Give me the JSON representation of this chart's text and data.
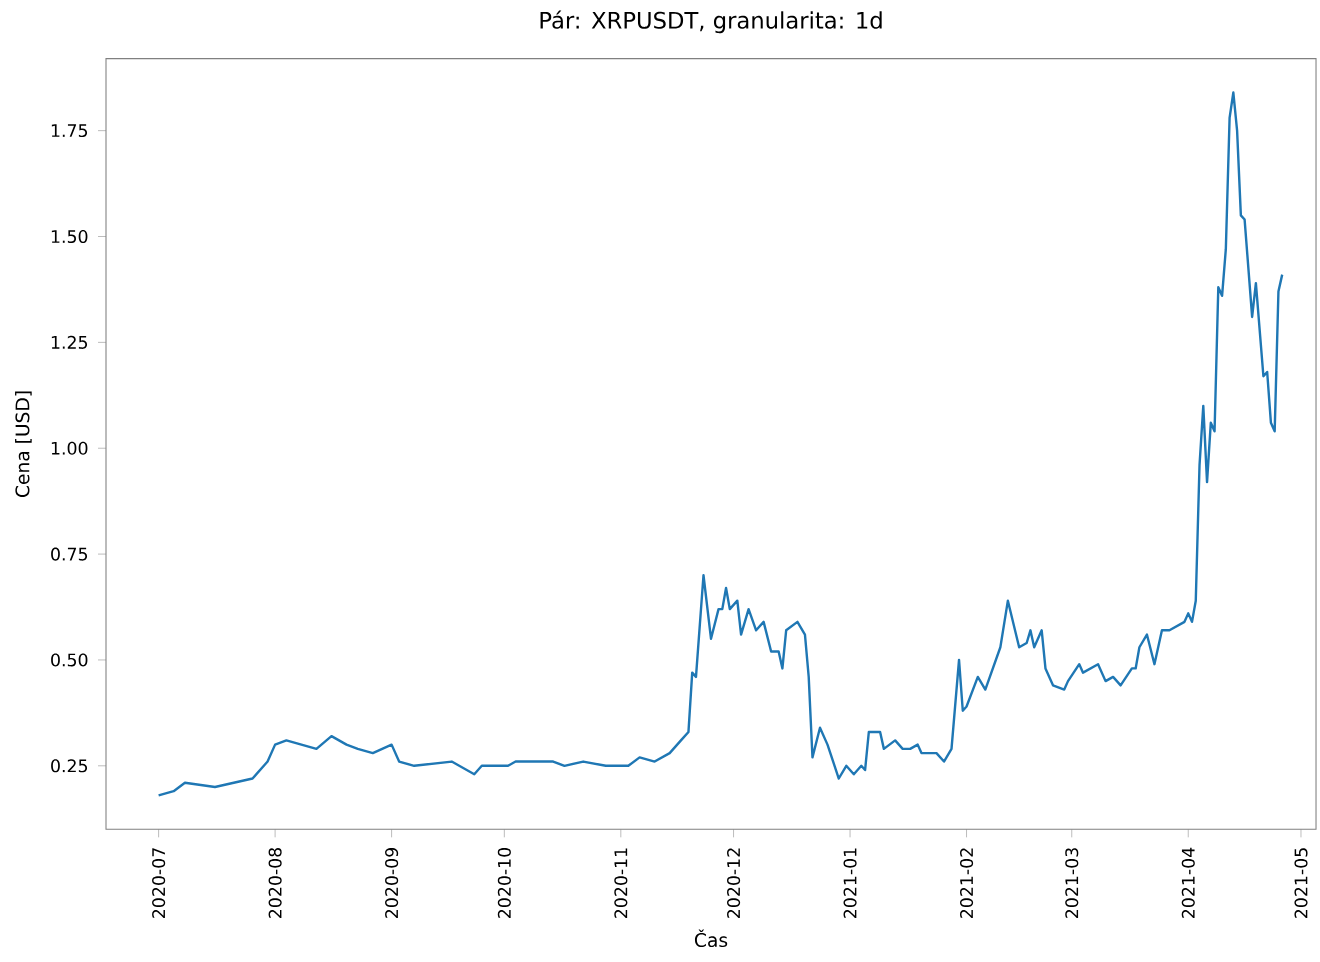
{
  "chart_data": {
    "type": "line",
    "title": "Pár: XRPUSDT, granularita: 1d",
    "xlabel": "Čas",
    "ylabel": "Cena [USD]",
    "xlim": [
      "2020-06-17",
      "2021-05-05"
    ],
    "ylim": [
      0.1,
      1.92
    ],
    "xticks": [
      "2020-07",
      "2020-08",
      "2020-09",
      "2020-10",
      "2020-11",
      "2020-12",
      "2021-01",
      "2021-02",
      "2021-03",
      "2021-04",
      "2021-05"
    ],
    "yticks": [
      {
        "value": 0.25,
        "label": "0.25"
      },
      {
        "value": 0.5,
        "label": "0.50"
      },
      {
        "value": 0.75,
        "label": "0.75"
      },
      {
        "value": 1.0,
        "label": "1.00"
      },
      {
        "value": 1.25,
        "label": "1.25"
      },
      {
        "value": 1.5,
        "label": "1.50"
      },
      {
        "value": 1.75,
        "label": "1.75"
      }
    ],
    "grid": false,
    "x": [
      "2020-07-01",
      "2020-07-05",
      "2020-07-08",
      "2020-07-16",
      "2020-07-21",
      "2020-07-26",
      "2020-07-30",
      "2020-08-01",
      "2020-08-04",
      "2020-08-12",
      "2020-08-16",
      "2020-08-20",
      "2020-08-23",
      "2020-08-27",
      "2020-09-01",
      "2020-09-03",
      "2020-09-07",
      "2020-09-17",
      "2020-09-23",
      "2020-09-25",
      "2020-10-02",
      "2020-10-04",
      "2020-10-14",
      "2020-10-17",
      "2020-10-22",
      "2020-10-28",
      "2020-11-03",
      "2020-11-06",
      "2020-11-10",
      "2020-11-14",
      "2020-11-17",
      "2020-11-19",
      "2020-11-20",
      "2020-11-21",
      "2020-11-23",
      "2020-11-25",
      "2020-11-27",
      "2020-11-28",
      "2020-11-29",
      "2020-11-30",
      "2020-12-02",
      "2020-12-03",
      "2020-12-05",
      "2020-12-07",
      "2020-12-09",
      "2020-12-11",
      "2020-12-13",
      "2020-12-14",
      "2020-12-15",
      "2020-12-18",
      "2020-12-20",
      "2020-12-21",
      "2020-12-22",
      "2020-12-24",
      "2020-12-26",
      "2020-12-29",
      "2020-12-31",
      "2021-01-02",
      "2021-01-04",
      "2021-01-05",
      "2021-01-06",
      "2021-01-09",
      "2021-01-10",
      "2021-01-13",
      "2021-01-15",
      "2021-01-17",
      "2021-01-19",
      "2021-01-20",
      "2021-01-24",
      "2021-01-26",
      "2021-01-28",
      "2021-01-30",
      "2021-01-31",
      "2021-02-01",
      "2021-02-04",
      "2021-02-06",
      "2021-02-10",
      "2021-02-12",
      "2021-02-15",
      "2021-02-17",
      "2021-02-18",
      "2021-02-19",
      "2021-02-21",
      "2021-02-22",
      "2021-02-24",
      "2021-02-27",
      "2021-02-28",
      "2021-03-03",
      "2021-03-04",
      "2021-03-08",
      "2021-03-10",
      "2021-03-12",
      "2021-03-14",
      "2021-03-17",
      "2021-03-18",
      "2021-03-19",
      "2021-03-21",
      "2021-03-23",
      "2021-03-25",
      "2021-03-27",
      "2021-03-29",
      "2021-03-31",
      "2021-04-01",
      "2021-04-02",
      "2021-04-03",
      "2021-04-04",
      "2021-04-05",
      "2021-04-06",
      "2021-04-07",
      "2021-04-08",
      "2021-04-09",
      "2021-04-10",
      "2021-04-11",
      "2021-04-12",
      "2021-04-13",
      "2021-04-14",
      "2021-04-15",
      "2021-04-16",
      "2021-04-18",
      "2021-04-19",
      "2021-04-21",
      "2021-04-22",
      "2021-04-23",
      "2021-04-24",
      "2021-04-25",
      "2021-04-26"
    ],
    "series": [
      {
        "color": "#1f77b4",
        "line_style": "solid",
        "values": [
          0.18,
          0.19,
          0.21,
          0.2,
          0.21,
          0.22,
          0.26,
          0.3,
          0.31,
          0.29,
          0.32,
          0.3,
          0.29,
          0.28,
          0.3,
          0.26,
          0.25,
          0.26,
          0.23,
          0.25,
          0.25,
          0.26,
          0.26,
          0.25,
          0.26,
          0.25,
          0.25,
          0.27,
          0.26,
          0.28,
          0.31,
          0.33,
          0.47,
          0.46,
          0.7,
          0.55,
          0.62,
          0.62,
          0.67,
          0.62,
          0.64,
          0.56,
          0.62,
          0.57,
          0.59,
          0.52,
          0.52,
          0.48,
          0.57,
          0.59,
          0.56,
          0.46,
          0.27,
          0.34,
          0.3,
          0.22,
          0.25,
          0.23,
          0.25,
          0.24,
          0.33,
          0.33,
          0.29,
          0.31,
          0.29,
          0.29,
          0.3,
          0.28,
          0.28,
          0.26,
          0.29,
          0.5,
          0.38,
          0.39,
          0.46,
          0.43,
          0.53,
          0.64,
          0.53,
          0.54,
          0.57,
          0.53,
          0.57,
          0.48,
          0.44,
          0.43,
          0.45,
          0.49,
          0.47,
          0.49,
          0.45,
          0.46,
          0.44,
          0.48,
          0.48,
          0.53,
          0.56,
          0.49,
          0.57,
          0.57,
          0.58,
          0.59,
          0.61,
          0.59,
          0.64,
          0.96,
          1.1,
          0.92,
          1.06,
          1.04,
          1.38,
          1.36,
          1.47,
          1.78,
          1.84,
          1.75,
          1.55,
          1.54,
          1.31,
          1.39,
          1.17,
          1.18,
          1.06,
          1.04,
          1.37,
          1.41
        ]
      }
    ]
  }
}
